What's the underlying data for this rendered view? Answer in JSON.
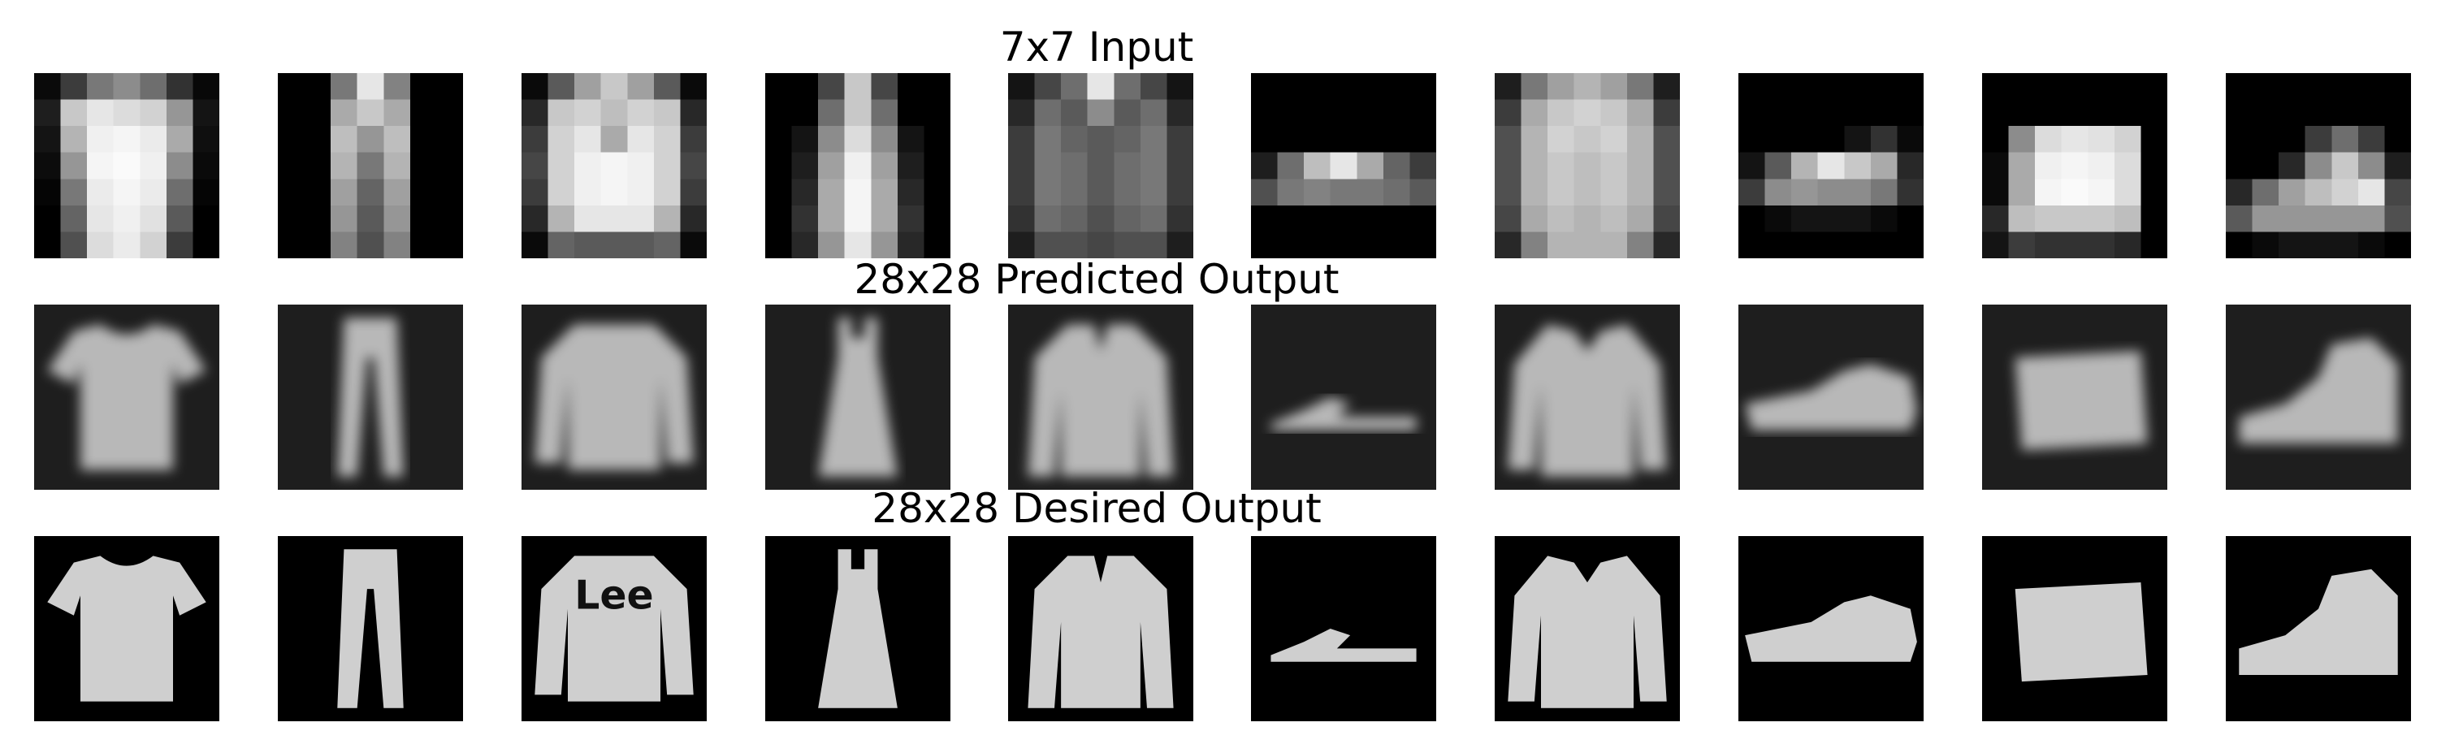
{
  "figure": {
    "rows": [
      {
        "title": "7x7 Input"
      },
      {
        "title": "28x28 Predicted Output"
      },
      {
        "title": "28x28 Desired Output"
      }
    ],
    "items": [
      {
        "subject": "t-shirt",
        "icon": "tshirt-icon"
      },
      {
        "subject": "trouser",
        "icon": "trouser-icon"
      },
      {
        "subject": "pullover",
        "icon": "pullover-icon",
        "printed_text": "Lee"
      },
      {
        "subject": "dress",
        "icon": "dress-icon"
      },
      {
        "subject": "coat",
        "icon": "coat-icon"
      },
      {
        "subject": "sandal",
        "icon": "sandal-icon"
      },
      {
        "subject": "shirt",
        "icon": "shirt-icon"
      },
      {
        "subject": "sneaker",
        "icon": "sneaker-icon"
      },
      {
        "subject": "bag",
        "icon": "bag-icon"
      },
      {
        "subject": "ankle-boot",
        "icon": "ankle-boot-icon"
      }
    ],
    "colors": {
      "background": "#ffffff",
      "tile_background": "#000000",
      "text": "#000000"
    }
  }
}
